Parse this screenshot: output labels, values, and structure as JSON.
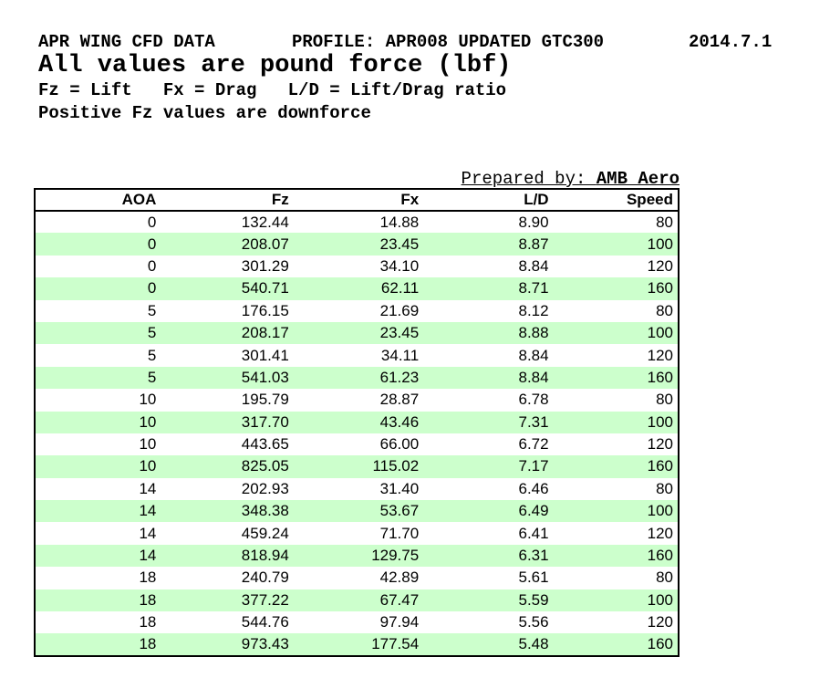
{
  "header": {
    "title": "APR WING CFD DATA",
    "profile": "PROFILE: APR008 UPDATED GTC300",
    "date": "2014.7.1",
    "units_note": "All values are pound force (lbf)",
    "legend": "Fz = Lift   Fx = Drag   L/D = Lift/Drag ratio",
    "downforce_note": "Positive Fz values are downforce"
  },
  "prepared_by": {
    "label": "Prepared by: ",
    "value": "AMB Aero"
  },
  "colors": {
    "stripe_green": "#ccffcc",
    "border": "#000000",
    "text": "#000000",
    "background": "#ffffff"
  },
  "chart_data": {
    "type": "table",
    "title": "APR WING CFD DATA",
    "columns": [
      "AOA",
      "Fz",
      "Fx",
      "L/D",
      "Speed"
    ],
    "decimal_columns": [
      1,
      2,
      3
    ],
    "rows": [
      [
        0,
        132.44,
        14.88,
        8.9,
        80
      ],
      [
        0,
        208.07,
        23.45,
        8.87,
        100
      ],
      [
        0,
        301.29,
        34.1,
        8.84,
        120
      ],
      [
        0,
        540.71,
        62.11,
        8.71,
        160
      ],
      [
        5,
        176.15,
        21.69,
        8.12,
        80
      ],
      [
        5,
        208.17,
        23.45,
        8.88,
        100
      ],
      [
        5,
        301.41,
        34.11,
        8.84,
        120
      ],
      [
        5,
        541.03,
        61.23,
        8.84,
        160
      ],
      [
        10,
        195.79,
        28.87,
        6.78,
        80
      ],
      [
        10,
        317.7,
        43.46,
        7.31,
        100
      ],
      [
        10,
        443.65,
        66.0,
        6.72,
        120
      ],
      [
        10,
        825.05,
        115.02,
        7.17,
        160
      ],
      [
        14,
        202.93,
        31.4,
        6.46,
        80
      ],
      [
        14,
        348.38,
        53.67,
        6.49,
        100
      ],
      [
        14,
        459.24,
        71.7,
        6.41,
        120
      ],
      [
        14,
        818.94,
        129.75,
        6.31,
        160
      ],
      [
        18,
        240.79,
        42.89,
        5.61,
        80
      ],
      [
        18,
        377.22,
        67.47,
        5.59,
        100
      ],
      [
        18,
        544.76,
        97.94,
        5.56,
        120
      ],
      [
        18,
        973.43,
        177.54,
        5.48,
        160
      ]
    ]
  }
}
